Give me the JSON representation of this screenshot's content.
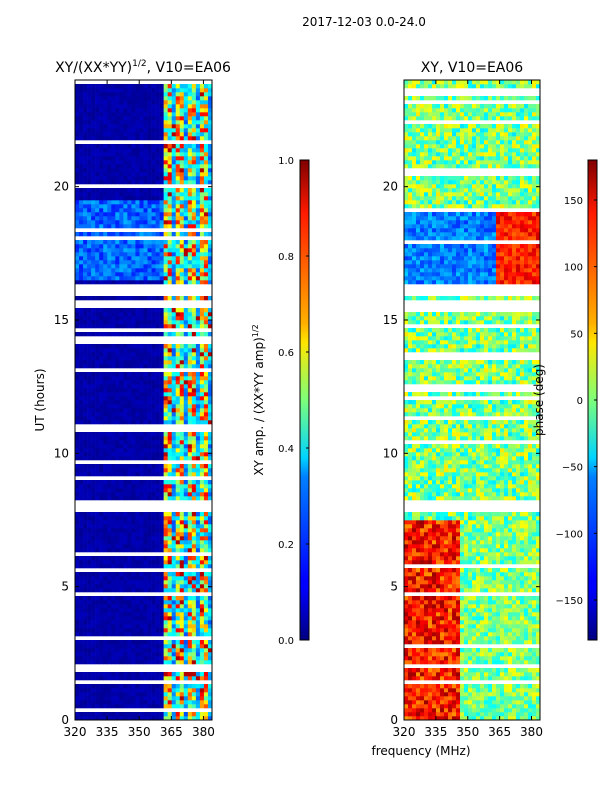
{
  "figure_title": "2017-12-03 0.0-24.0",
  "shared_xlabel": "frequency (MHz)",
  "chart_data": [
    {
      "type": "heatmap",
      "title": "XY/(XX*YY)",
      "title_superscript": "1/2",
      "title_suffix": ", V10=EA06",
      "ylabel": "UT (hours)",
      "xlim": [
        320,
        384
      ],
      "ylim": [
        0,
        24
      ],
      "xticks": [
        320,
        335,
        350,
        365,
        380
      ],
      "yticks": [
        0,
        5,
        10,
        15,
        20
      ],
      "colorbar": {
        "label": "XY amp. / (XX*YY amp)",
        "label_superscript": "1/2",
        "range": [
          0.0,
          1.0
        ],
        "ticks": [
          0.0,
          0.2,
          0.4,
          0.6,
          0.8,
          1.0
        ],
        "tick_labels": [
          "0.0",
          "0.2",
          "0.4",
          "0.6",
          "0.8",
          "1.0"
        ],
        "colormap": "jet"
      }
    },
    {
      "type": "heatmap",
      "title": "XY, V10=EA06",
      "ylabel": "",
      "xlim": [
        320,
        384
      ],
      "ylim": [
        0,
        24
      ],
      "xticks": [
        320,
        335,
        350,
        365,
        380
      ],
      "yticks": [
        0,
        5,
        10,
        15,
        20
      ],
      "colorbar": {
        "label": "phase (deg)",
        "range": [
          -180,
          180
        ],
        "ticks": [
          -150,
          -100,
          -50,
          0,
          50,
          100,
          150
        ],
        "tick_labels": [
          "−150",
          "−100",
          "−50",
          "0",
          "50",
          "100",
          "150"
        ],
        "colormap": "jet"
      }
    }
  ]
}
